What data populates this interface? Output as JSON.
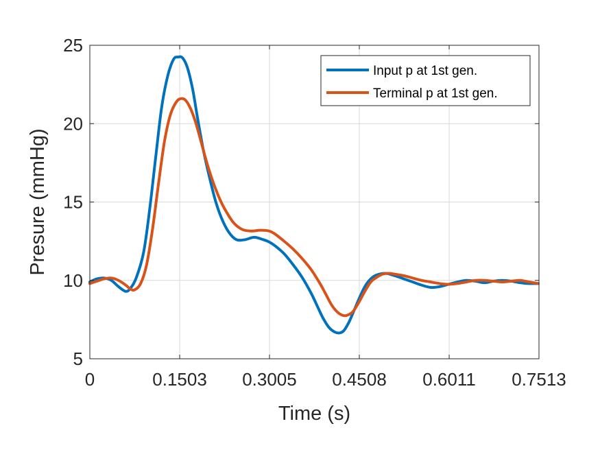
{
  "chart_data": {
    "type": "line",
    "title": "",
    "xlabel": "Time (s)",
    "ylabel": "Presure (mmHg)",
    "xlim": [
      0,
      0.7513
    ],
    "ylim": [
      5,
      25
    ],
    "x_ticks": [
      0,
      0.1503,
      0.3005,
      0.4508,
      0.6011,
      0.7513
    ],
    "x_tick_labels": [
      "0",
      "0.1503",
      "0.3005",
      "0.4508",
      "0.6011",
      "0.7513"
    ],
    "y_ticks": [
      5,
      10,
      15,
      20,
      25
    ],
    "y_tick_labels": [
      "5",
      "10",
      "15",
      "20",
      "25"
    ],
    "grid": true,
    "legend_position": "top-right",
    "series": [
      {
        "name": "Input p at 1st gen.",
        "color": "#0072BD",
        "x": [
          0,
          0.012,
          0.024,
          0.036,
          0.048,
          0.06,
          0.068,
          0.078,
          0.09,
          0.1,
          0.11,
          0.12,
          0.13,
          0.14,
          0.148,
          0.155,
          0.163,
          0.172,
          0.18,
          0.19,
          0.2,
          0.21,
          0.22,
          0.232,
          0.245,
          0.26,
          0.275,
          0.29,
          0.3,
          0.31,
          0.325,
          0.34,
          0.355,
          0.37,
          0.38,
          0.39,
          0.4,
          0.41,
          0.418,
          0.425,
          0.433,
          0.44,
          0.45,
          0.46,
          0.47,
          0.48,
          0.495,
          0.51,
          0.525,
          0.54,
          0.555,
          0.57,
          0.585,
          0.6,
          0.615,
          0.63,
          0.645,
          0.66,
          0.675,
          0.69,
          0.705,
          0.72,
          0.735,
          0.75
        ],
        "values": [
          9.9,
          10.1,
          10.15,
          10.0,
          9.6,
          9.3,
          9.5,
          10.2,
          11.8,
          14.5,
          17.8,
          21.0,
          23.0,
          24.1,
          24.25,
          24.2,
          23.6,
          22.2,
          20.4,
          18.3,
          16.6,
          15.1,
          14.0,
          13.1,
          12.6,
          12.6,
          12.75,
          12.6,
          12.45,
          12.2,
          11.7,
          11.0,
          10.2,
          9.2,
          8.4,
          7.6,
          7.0,
          6.7,
          6.65,
          6.8,
          7.3,
          7.9,
          8.8,
          9.6,
          10.1,
          10.35,
          10.45,
          10.3,
          10.1,
          9.9,
          9.7,
          9.55,
          9.6,
          9.75,
          9.9,
          10.0,
          9.95,
          9.85,
          9.95,
          10.0,
          9.95,
          9.85,
          9.8,
          9.8
        ]
      },
      {
        "name": "Terminal p at 1st gen.",
        "color": "#D95319",
        "x": [
          0,
          0.012,
          0.024,
          0.036,
          0.048,
          0.06,
          0.068,
          0.075,
          0.085,
          0.095,
          0.105,
          0.115,
          0.125,
          0.135,
          0.145,
          0.153,
          0.16,
          0.168,
          0.176,
          0.185,
          0.195,
          0.205,
          0.215,
          0.225,
          0.24,
          0.255,
          0.27,
          0.285,
          0.3,
          0.31,
          0.325,
          0.34,
          0.355,
          0.37,
          0.385,
          0.395,
          0.405,
          0.415,
          0.425,
          0.432,
          0.44,
          0.45,
          0.46,
          0.47,
          0.48,
          0.49,
          0.5,
          0.51,
          0.525,
          0.54,
          0.555,
          0.57,
          0.585,
          0.6,
          0.615,
          0.63,
          0.645,
          0.66,
          0.675,
          0.69,
          0.705,
          0.72,
          0.735,
          0.75
        ],
        "values": [
          9.8,
          9.95,
          10.1,
          10.15,
          10.0,
          9.7,
          9.45,
          9.4,
          9.8,
          11.0,
          13.3,
          16.2,
          18.9,
          20.6,
          21.4,
          21.6,
          21.5,
          21.0,
          20.2,
          19.0,
          17.6,
          16.4,
          15.4,
          14.6,
          13.7,
          13.25,
          13.15,
          13.2,
          13.15,
          12.95,
          12.5,
          12.0,
          11.4,
          10.7,
          9.8,
          9.1,
          8.4,
          7.95,
          7.75,
          7.8,
          8.0,
          8.6,
          9.3,
          9.9,
          10.2,
          10.4,
          10.45,
          10.4,
          10.3,
          10.15,
          10.0,
          9.9,
          9.8,
          9.75,
          9.8,
          9.9,
          10.0,
          10.0,
          9.95,
          9.9,
          9.95,
          10.0,
          9.9,
          9.8
        ]
      }
    ]
  }
}
